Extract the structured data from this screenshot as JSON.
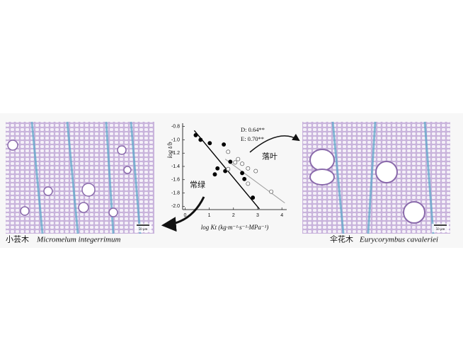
{
  "figure": {
    "left": {
      "caption_cn": "小芸木",
      "caption_latin": "Micromelum integerrimum",
      "scale_bar": "50 μm"
    },
    "right": {
      "caption_cn": "伞花木",
      "caption_latin": "Eurycorymbus cavaleriei",
      "scale_bar": "50 μm"
    }
  },
  "chart_data": {
    "type": "scatter",
    "x_label": "log Kt (kg·m⁻¹·s⁻¹·MPa⁻¹)",
    "y_label": "log t/b",
    "annotations": [
      "D: 0.64**",
      "E: 0.70**",
      "落叶",
      "常绿"
    ],
    "xlim": [
      -0.1,
      4.2
    ],
    "ylim": [
      -2.05,
      -0.75
    ],
    "xticks": [
      0,
      1,
      2,
      3,
      4
    ],
    "yticks": [
      -0.8,
      {
        "value": -1.0,
        "label": "-1.0"
      },
      -1.2,
      -1.4,
      -1.6,
      -1.8,
      {
        "value": -2.0,
        "label": "-2.0"
      }
    ],
    "series": [
      {
        "marker": "filled",
        "color": "#000000",
        "x": [
          0.44,
          0.64,
          1.02,
          1.6,
          1.34,
          1.23,
          1.66,
          1.87,
          2.36,
          2.45,
          2.8
        ],
        "values": [
          -0.93,
          -1.0,
          -1.05,
          -1.07,
          -1.43,
          -1.52,
          -1.47,
          -1.33,
          -1.5,
          -1.59,
          -1.87
        ]
      },
      {
        "marker": "open",
        "color": "#555555",
        "x": [
          1.78,
          2.19,
          2.07,
          2.36,
          1.78,
          2.6,
          2.92,
          2.6,
          3.56
        ],
        "values": [
          -1.18,
          -1.29,
          -1.34,
          -1.36,
          -1.44,
          -1.43,
          -1.47,
          -1.66,
          -1.78
        ]
      }
    ],
    "fit_lines": [
      {
        "color": "#000000",
        "x": [
          0.38,
          3.07
        ],
        "values": [
          -0.86,
          -2.04
        ]
      },
      {
        "color": "#999999",
        "x": [
          1.66,
          4.12
        ],
        "values": [
          -1.29,
          -1.95
        ]
      }
    ]
  }
}
